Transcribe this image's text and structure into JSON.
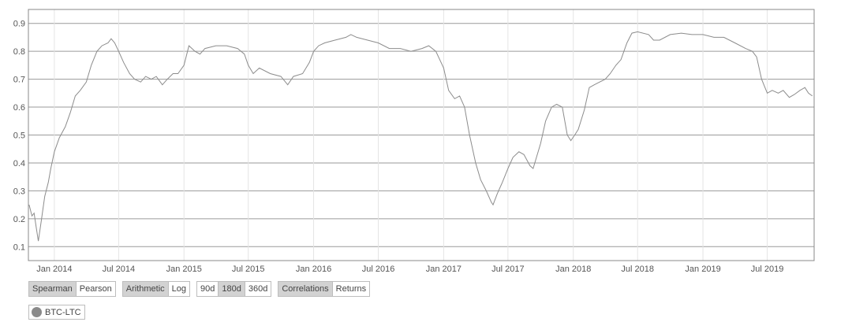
{
  "chart_data": {
    "type": "line",
    "title": "",
    "xlabel": "",
    "ylabel": "",
    "xlim": [
      "2013-10-20",
      "2019-11-10"
    ],
    "ylim": [
      0.05,
      0.95
    ],
    "yticks": [
      0.1,
      0.2,
      0.3,
      0.4,
      0.5,
      0.6,
      0.7,
      0.8,
      0.9
    ],
    "ytick_labels": [
      "0.1",
      "0.2",
      "0.3",
      "0.4",
      "0.5",
      "0.6",
      "0.7",
      "0.8",
      "0.9"
    ],
    "xticks": [
      "2014-01-01",
      "2014-07-01",
      "2015-01-01",
      "2015-07-01",
      "2016-01-01",
      "2016-07-01",
      "2017-01-01",
      "2017-07-01",
      "2018-01-01",
      "2018-07-01",
      "2019-01-01",
      "2019-07-01"
    ],
    "xtick_labels": [
      "Jan 2014",
      "Jul 2014",
      "Jan 2015",
      "Jul 2015",
      "Jan 2016",
      "Jul 2016",
      "Jan 2017",
      "Jul 2017",
      "Jan 2018",
      "Jul 2018",
      "Jan 2019",
      "Jul 2019"
    ],
    "grid": "horizontal",
    "line_color": "#8c8c8c",
    "series": [
      {
        "name": "BTC-LTC",
        "points": [
          [
            "2013-10-22",
            0.25
          ],
          [
            "2013-10-30",
            0.21
          ],
          [
            "2013-11-05",
            0.22
          ],
          [
            "2013-11-12",
            0.16
          ],
          [
            "2013-11-17",
            0.12
          ],
          [
            "2013-11-25",
            0.19
          ],
          [
            "2013-12-05",
            0.28
          ],
          [
            "2013-12-15",
            0.33
          ],
          [
            "2013-12-22",
            0.38
          ],
          [
            "2014-01-01",
            0.44
          ],
          [
            "2014-01-15",
            0.49
          ],
          [
            "2014-02-01",
            0.53
          ],
          [
            "2014-02-15",
            0.58
          ],
          [
            "2014-03-01",
            0.64
          ],
          [
            "2014-03-15",
            0.66
          ],
          [
            "2014-04-01",
            0.69
          ],
          [
            "2014-04-15",
            0.75
          ],
          [
            "2014-05-01",
            0.8
          ],
          [
            "2014-05-15",
            0.82
          ],
          [
            "2014-06-01",
            0.83
          ],
          [
            "2014-06-10",
            0.845
          ],
          [
            "2014-06-20",
            0.83
          ],
          [
            "2014-07-01",
            0.8
          ],
          [
            "2014-07-15",
            0.76
          ],
          [
            "2014-08-01",
            0.72
          ],
          [
            "2014-08-15",
            0.7
          ],
          [
            "2014-09-01",
            0.69
          ],
          [
            "2014-09-15",
            0.71
          ],
          [
            "2014-10-01",
            0.7
          ],
          [
            "2014-10-15",
            0.71
          ],
          [
            "2014-11-01",
            0.68
          ],
          [
            "2014-11-15",
            0.7
          ],
          [
            "2014-12-01",
            0.72
          ],
          [
            "2014-12-15",
            0.72
          ],
          [
            "2015-01-01",
            0.75
          ],
          [
            "2015-01-15",
            0.82
          ],
          [
            "2015-02-01",
            0.8
          ],
          [
            "2015-02-15",
            0.79
          ],
          [
            "2015-03-01",
            0.81
          ],
          [
            "2015-04-01",
            0.82
          ],
          [
            "2015-05-01",
            0.82
          ],
          [
            "2015-06-01",
            0.81
          ],
          [
            "2015-06-20",
            0.79
          ],
          [
            "2015-07-01",
            0.75
          ],
          [
            "2015-07-15",
            0.72
          ],
          [
            "2015-08-01",
            0.74
          ],
          [
            "2015-09-01",
            0.72
          ],
          [
            "2015-10-01",
            0.71
          ],
          [
            "2015-10-20",
            0.68
          ],
          [
            "2015-11-05",
            0.71
          ],
          [
            "2015-12-01",
            0.72
          ],
          [
            "2015-12-20",
            0.76
          ],
          [
            "2016-01-01",
            0.8
          ],
          [
            "2016-01-15",
            0.82
          ],
          [
            "2016-02-01",
            0.83
          ],
          [
            "2016-03-01",
            0.84
          ],
          [
            "2016-04-01",
            0.85
          ],
          [
            "2016-04-15",
            0.86
          ],
          [
            "2016-05-01",
            0.85
          ],
          [
            "2016-06-01",
            0.84
          ],
          [
            "2016-07-01",
            0.83
          ],
          [
            "2016-08-01",
            0.81
          ],
          [
            "2016-09-01",
            0.81
          ],
          [
            "2016-10-01",
            0.8
          ],
          [
            "2016-11-01",
            0.81
          ],
          [
            "2016-11-20",
            0.82
          ],
          [
            "2016-12-10",
            0.8
          ],
          [
            "2017-01-01",
            0.74
          ],
          [
            "2017-01-15",
            0.66
          ],
          [
            "2017-02-01",
            0.63
          ],
          [
            "2017-02-15",
            0.64
          ],
          [
            "2017-03-01",
            0.6
          ],
          [
            "2017-03-15",
            0.5
          ],
          [
            "2017-04-01",
            0.4
          ],
          [
            "2017-04-15",
            0.34
          ],
          [
            "2017-05-01",
            0.3
          ],
          [
            "2017-05-15",
            0.26
          ],
          [
            "2017-05-20",
            0.25
          ],
          [
            "2017-06-01",
            0.29
          ],
          [
            "2017-06-15",
            0.33
          ],
          [
            "2017-07-01",
            0.38
          ],
          [
            "2017-07-15",
            0.42
          ],
          [
            "2017-08-01",
            0.44
          ],
          [
            "2017-08-15",
            0.43
          ],
          [
            "2017-09-01",
            0.39
          ],
          [
            "2017-09-10",
            0.38
          ],
          [
            "2017-10-01",
            0.47
          ],
          [
            "2017-10-15",
            0.55
          ],
          [
            "2017-11-01",
            0.6
          ],
          [
            "2017-11-15",
            0.61
          ],
          [
            "2017-12-01",
            0.6
          ],
          [
            "2017-12-15",
            0.5
          ],
          [
            "2017-12-25",
            0.48
          ],
          [
            "2018-01-05",
            0.5
          ],
          [
            "2018-01-15",
            0.52
          ],
          [
            "2018-02-01",
            0.59
          ],
          [
            "2018-02-15",
            0.67
          ],
          [
            "2018-03-01",
            0.68
          ],
          [
            "2018-04-01",
            0.7
          ],
          [
            "2018-04-15",
            0.72
          ],
          [
            "2018-05-01",
            0.75
          ],
          [
            "2018-05-15",
            0.77
          ],
          [
            "2018-06-01",
            0.83
          ],
          [
            "2018-06-15",
            0.865
          ],
          [
            "2018-07-01",
            0.87
          ],
          [
            "2018-08-01",
            0.86
          ],
          [
            "2018-08-15",
            0.84
          ],
          [
            "2018-09-01",
            0.84
          ],
          [
            "2018-10-01",
            0.86
          ],
          [
            "2018-11-01",
            0.865
          ],
          [
            "2018-12-01",
            0.86
          ],
          [
            "2019-01-01",
            0.86
          ],
          [
            "2019-02-01",
            0.85
          ],
          [
            "2019-03-01",
            0.85
          ],
          [
            "2019-04-01",
            0.83
          ],
          [
            "2019-05-01",
            0.81
          ],
          [
            "2019-05-20",
            0.8
          ],
          [
            "2019-06-01",
            0.78
          ],
          [
            "2019-06-15",
            0.7
          ],
          [
            "2019-07-01",
            0.65
          ],
          [
            "2019-07-15",
            0.66
          ],
          [
            "2019-08-01",
            0.65
          ],
          [
            "2019-08-15",
            0.66
          ],
          [
            "2019-09-01",
            0.635
          ],
          [
            "2019-09-15",
            0.645
          ],
          [
            "2019-10-01",
            0.66
          ],
          [
            "2019-10-15",
            0.67
          ],
          [
            "2019-10-25",
            0.65
          ],
          [
            "2019-11-05",
            0.64
          ]
        ]
      }
    ]
  },
  "controls": {
    "method": {
      "options": [
        "Spearman",
        "Pearson"
      ],
      "active": "Spearman"
    },
    "scale": {
      "options": [
        "Arithmetic",
        "Log"
      ],
      "active": "Arithmetic"
    },
    "window": {
      "options": [
        "90d",
        "180d",
        "360d"
      ],
      "active": "180d"
    },
    "mode": {
      "options": [
        "Correlations",
        "Returns"
      ],
      "active": "Correlations"
    }
  },
  "legend": {
    "label": "BTC-LTC",
    "color": "#8a8a8a"
  }
}
